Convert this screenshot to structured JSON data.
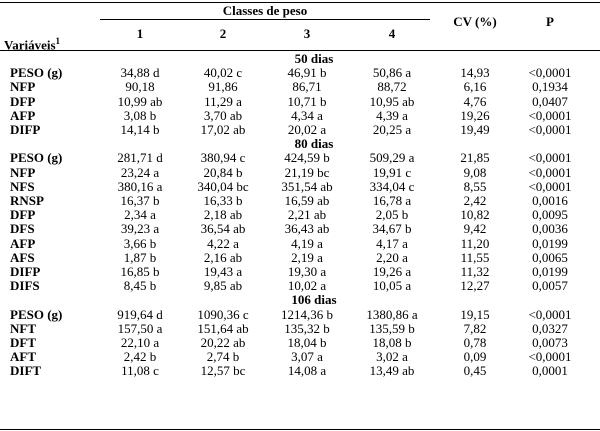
{
  "header": {
    "group": "Classes de peso",
    "variables": "Variáveis",
    "variables_sup": "1",
    "classes": [
      "1",
      "2",
      "3",
      "4"
    ],
    "cv": "CV (%)",
    "p": "P"
  },
  "sections": [
    {
      "title": "50 dias",
      "rows": [
        {
          "var": "PESO (g)",
          "c1": "34,88 d",
          "c2": "40,02 c",
          "c3": "46,91 b",
          "c4": "50,86 a",
          "cv": "14,93",
          "p": "<0,0001"
        },
        {
          "var": "NFP",
          "c1": "90,18",
          "c2": "91,86",
          "c3": "86,71",
          "c4": "88,72",
          "cv": "6,16",
          "p": "0,1934"
        },
        {
          "var": "DFP",
          "c1": "10,99 ab",
          "c2": "11,29 a",
          "c3": "10,71 b",
          "c4": "10,95 ab",
          "cv": "4,76",
          "p": "0,0407"
        },
        {
          "var": "AFP",
          "c1": "3,08 b",
          "c2": "3,70 ab",
          "c3": "4,34 a",
          "c4": "4,39 a",
          "cv": "19,26",
          "p": "<0,0001"
        },
        {
          "var": "DIFP",
          "c1": "14,14 b",
          "c2": "17,02 ab",
          "c3": "20,02 a",
          "c4": "20,25 a",
          "cv": "19,49",
          "p": "<0,0001"
        }
      ]
    },
    {
      "title": "80 dias",
      "rows": [
        {
          "var": "PESO (g)",
          "c1": "281,71 d",
          "c2": "380,94 c",
          "c3": "424,59 b",
          "c4": "509,29 a",
          "cv": "21,85",
          "p": "<0,0001"
        },
        {
          "var": "NFP",
          "c1": "23,24 a",
          "c2": "20,84 b",
          "c3": "21,19 bc",
          "c4": "19,91 c",
          "cv": "9,08",
          "p": "<0,0001"
        },
        {
          "var": "NFS",
          "c1": "380,16 a",
          "c2": "340,04 bc",
          "c3": "351,54 ab",
          "c4": "334,04 c",
          "cv": "8,55",
          "p": "<0,0001"
        },
        {
          "var": "RNSP",
          "c1": "16,37 b",
          "c2": "16,33 b",
          "c3": "16,59 ab",
          "c4": "16,78 a",
          "cv": "2,42",
          "p": "0,0016"
        },
        {
          "var": "DFP",
          "c1": "2,34 a",
          "c2": "2,18 ab",
          "c3": "2,21 ab",
          "c4": "2,05 b",
          "cv": "10,82",
          "p": "0,0095"
        },
        {
          "var": "DFS",
          "c1": "39,23 a",
          "c2": "36,54 ab",
          "c3": "36,43 ab",
          "c4": "34,67 b",
          "cv": "9,42",
          "p": "0,0036"
        },
        {
          "var": "AFP",
          "c1": "3,66 b",
          "c2": "4,22 a",
          "c3": "4,19 a",
          "c4": "4,17 a",
          "cv": "11,20",
          "p": "0,0199"
        },
        {
          "var": "AFS",
          "c1": "1,87 b",
          "c2": "2,16 ab",
          "c3": "2,19 a",
          "c4": "2,20 a",
          "cv": "11,55",
          "p": "0,0065"
        },
        {
          "var": "DIFP",
          "c1": "16,85 b",
          "c2": "19,43 a",
          "c3": "19,30 a",
          "c4": "19,26 a",
          "cv": "11,32",
          "p": "0,0199"
        },
        {
          "var": "DIFS",
          "c1": "8,45 b",
          "c2": "9,85 ab",
          "c3": "10,02 a",
          "c4": "10,05 a",
          "cv": "12,27",
          "p": "0,0057"
        }
      ]
    },
    {
      "title": "106 dias",
      "rows": [
        {
          "var": "PESO (g)",
          "c1": "919,64 d",
          "c2": "1090,36 c",
          "c3": "1214,36 b",
          "c4": "1380,86 a",
          "cv": "19,15",
          "p": "<0,0001"
        },
        {
          "var": "NFT",
          "c1": "157,50 a",
          "c2": "151,64 ab",
          "c3": "135,32 b",
          "c4": "135,59 b",
          "cv": "7,82",
          "p": "0,0327"
        },
        {
          "var": "DFT",
          "c1": "22,10 a",
          "c2": "20,22 ab",
          "c3": "18,04 b",
          "c4": "18,08 b",
          "cv": "0,78",
          "p": "0,0073"
        },
        {
          "var": "AFT",
          "c1": "2,42 b",
          "c2": "2,74 b",
          "c3": "3,07 a",
          "c4": "3,02 a",
          "cv": "0,09",
          "p": "<0,0001"
        },
        {
          "var": "DIFT",
          "c1": "11,08 c",
          "c2": "12,57 bc",
          "c3": "14,08 a",
          "c4": "13,49 ab",
          "cv": "0,45",
          "p": "0,0001"
        }
      ]
    }
  ]
}
